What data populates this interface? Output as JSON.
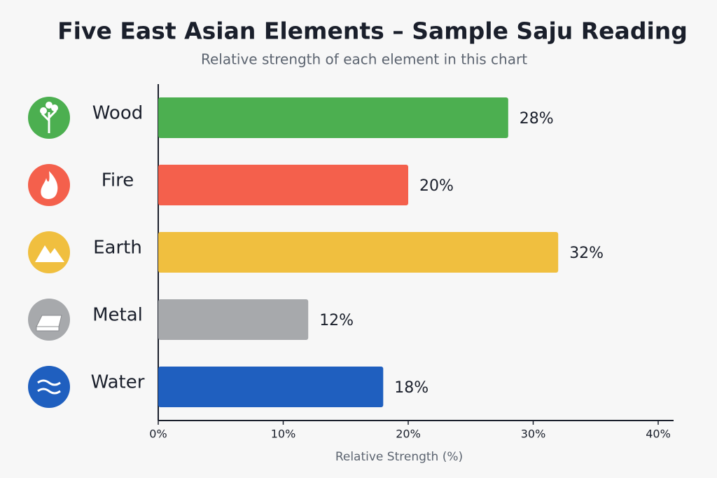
{
  "chart_data": {
    "type": "bar",
    "orientation": "horizontal",
    "title": "Five East Asian Elements – Sample Saju Reading",
    "subtitle": "Relative strength of each element in this chart",
    "x_label": "Relative Strength (%)",
    "categories": [
      "Wood",
      "Fire",
      "Earth",
      "Metal",
      "Water"
    ],
    "values": [
      28,
      20,
      32,
      12,
      18
    ],
    "value_labels": [
      "28%",
      "20%",
      "32%",
      "12%",
      "18%"
    ],
    "colors": [
      "#4caf50",
      "#f4604c",
      "#f0bf3f",
      "#a7a9ac",
      "#1f5fbf"
    ],
    "xlim": [
      0,
      40
    ],
    "xticks": [
      {
        "value": 0,
        "label": "0%"
      },
      {
        "value": 10,
        "label": "10%"
      },
      {
        "value": 20,
        "label": "20%"
      },
      {
        "value": 30,
        "label": "30%"
      },
      {
        "value": 40,
        "label": "40%"
      }
    ]
  }
}
